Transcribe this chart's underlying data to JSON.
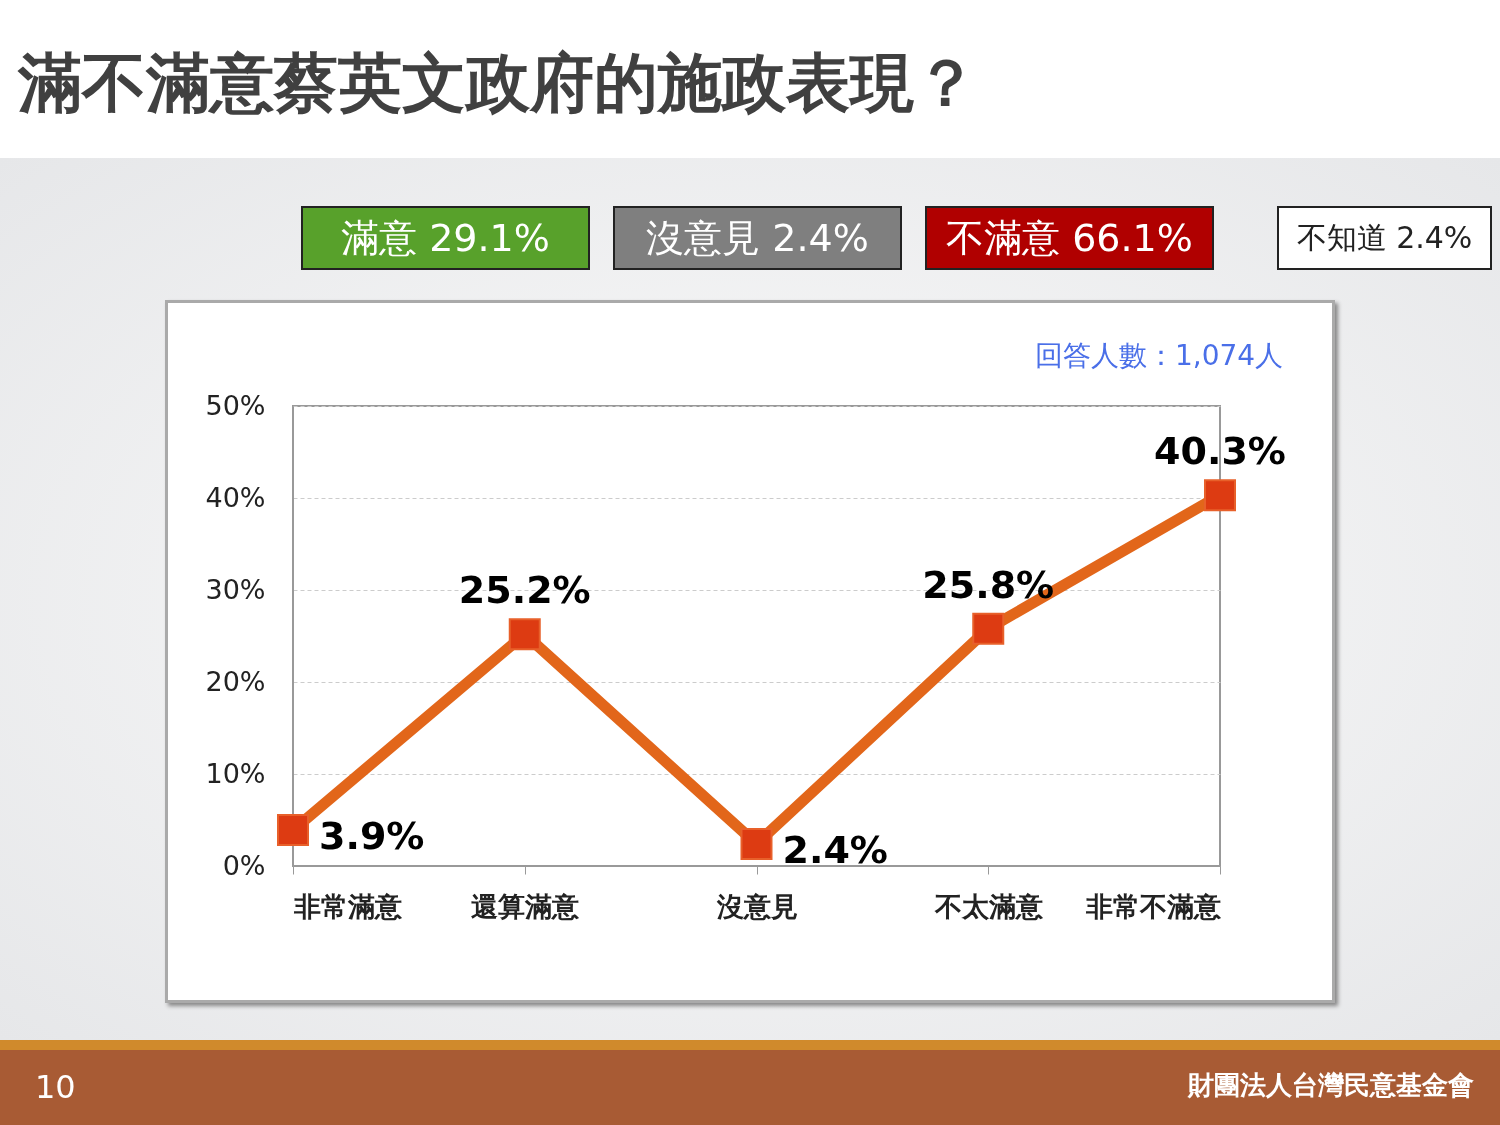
{
  "chart_data": {
    "type": "line",
    "title": "滿不滿意蔡英文政府的施政表現？",
    "categories": [
      "非常滿意",
      "還算滿意",
      "沒意見",
      "不太滿意",
      "非常不滿意"
    ],
    "series": [
      {
        "color": "#e2661a",
        "values": [
          3.9,
          25.2,
          2.4,
          25.8,
          40.3
        ]
      }
    ],
    "ylim": [
      0,
      50
    ],
    "yticks": [
      {
        "value": 0,
        "label": "0%"
      },
      {
        "value": 10,
        "label": "10%"
      },
      {
        "value": 20,
        "label": "20%"
      },
      {
        "value": 30,
        "label": "30%"
      },
      {
        "value": 40,
        "label": "40%"
      },
      {
        "value": 50,
        "label": "50%"
      }
    ],
    "value_labels": [
      "3.9%",
      "25.2%",
      "2.4%",
      "25.8%",
      "40.3%"
    ],
    "grid": "y",
    "marker": "square",
    "line_style": "solid",
    "annotations": [
      "滿意 29.1%",
      "沒意見 2.4%",
      "不滿意 66.1%",
      "不知道 2.4%",
      "回答人數：1,074人",
      "10",
      "財團法人台灣民意基金會"
    ]
  }
}
